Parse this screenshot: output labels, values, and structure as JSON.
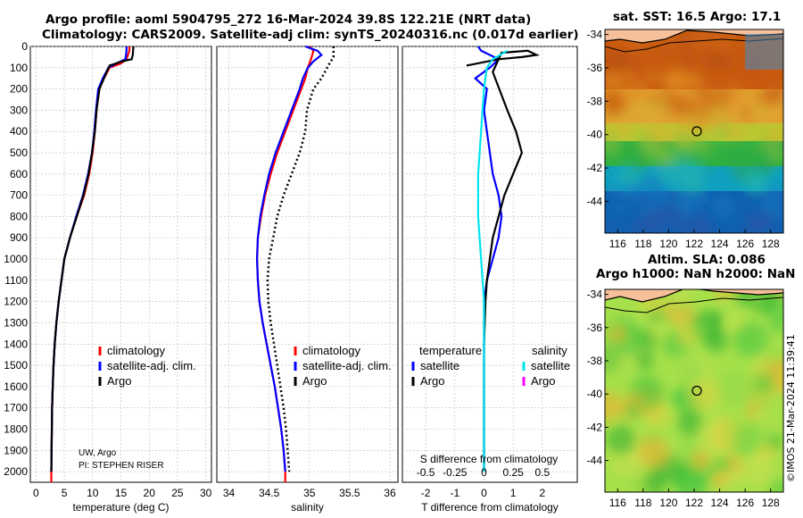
{
  "header": {
    "title_line1": "Argo profile: aoml 5904795_272 16-Mar-2024 39.8S 122.21E (NRT data)",
    "title_line2": "Climatology: CARS2009. Satellite-adj clim: synTS_20240316.nc (0.017d earlier)"
  },
  "footer_note": "©IMOS 21-Mar-2024 11:39:41",
  "credit": {
    "line1": "UW, Argo",
    "line2": "PI: STEPHEN RISER"
  },
  "colors": {
    "climatology": "#ff0000",
    "satellite": "#0000ff",
    "argo": "#000000",
    "sat_salinity": "#00e5ee",
    "argo_salinity": "#ff00ff",
    "land": "#f5c09a"
  },
  "chart_data": [
    {
      "type": "line",
      "xlabel": "temperature (deg C)",
      "ylim": [
        2050,
        0
      ],
      "xlim": [
        -1,
        31
      ],
      "xticks": [
        "0",
        "5",
        "10",
        "15",
        "20",
        "25",
        "30"
      ],
      "yticks": [
        "0",
        "100",
        "200",
        "300",
        "400",
        "500",
        "600",
        "700",
        "800",
        "900",
        "1000",
        "1100",
        "1200",
        "1300",
        "1400",
        "1500",
        "1600",
        "1700",
        "1800",
        "1900",
        "2000"
      ],
      "legend": [
        "climatology",
        "satellite-adj. clim.",
        "Argo"
      ],
      "series": [
        {
          "name": "climatology",
          "color": "#ff0000",
          "points": [
            [
              16.5,
              0
            ],
            [
              16.5,
              20
            ],
            [
              16,
              60
            ],
            [
              15,
              80
            ],
            [
              13,
              100
            ],
            [
              12,
              150
            ],
            [
              11.2,
              200
            ],
            [
              10.7,
              300
            ],
            [
              10.4,
              400
            ],
            [
              10,
              500
            ],
            [
              9.4,
              600
            ],
            [
              8.5,
              700
            ],
            [
              7.2,
              800
            ],
            [
              6,
              900
            ],
            [
              5,
              1000
            ],
            [
              4.5,
              1100
            ],
            [
              4,
              1200
            ],
            [
              3.6,
              1300
            ],
            [
              3.3,
              1400
            ],
            [
              3.1,
              1500
            ],
            [
              2.95,
              1600
            ],
            [
              2.85,
              1700
            ],
            [
              2.8,
              1800
            ],
            [
              2.75,
              1900
            ],
            [
              2.7,
              2000
            ],
            [
              2.7,
              2050
            ]
          ]
        },
        {
          "name": "satellite-adj. clim.",
          "color": "#0000ff",
          "points": [
            [
              16,
              0
            ],
            [
              16,
              20
            ],
            [
              15.8,
              60
            ],
            [
              14.2,
              80
            ],
            [
              12.8,
              100
            ],
            [
              11.8,
              150
            ],
            [
              11,
              200
            ],
            [
              10.6,
              300
            ],
            [
              10.3,
              400
            ],
            [
              9.9,
              500
            ],
            [
              9.2,
              600
            ],
            [
              8.3,
              700
            ],
            [
              7.1,
              800
            ],
            [
              6,
              900
            ],
            [
              5,
              1000
            ],
            [
              4.5,
              1100
            ],
            [
              4,
              1200
            ],
            [
              3.6,
              1300
            ],
            [
              3.3,
              1400
            ],
            [
              3.1,
              1500
            ],
            [
              2.95,
              1600
            ],
            [
              2.85,
              1700
            ],
            [
              2.8,
              1800
            ],
            [
              2.75,
              1900
            ],
            [
              2.7,
              2000
            ]
          ]
        },
        {
          "name": "Argo",
          "color": "#000000",
          "points": [
            [
              17.2,
              0
            ],
            [
              17.1,
              40
            ],
            [
              16.9,
              60
            ],
            [
              15.2,
              70
            ],
            [
              13,
              90
            ],
            [
              12,
              150
            ],
            [
              11.2,
              200
            ],
            [
              10.7,
              300
            ],
            [
              10.4,
              400
            ],
            [
              9.9,
              500
            ],
            [
              9.3,
              600
            ],
            [
              8.4,
              700
            ],
            [
              7.2,
              800
            ],
            [
              6,
              900
            ],
            [
              5,
              1000
            ],
            [
              4.5,
              1100
            ],
            [
              4,
              1200
            ],
            [
              3.6,
              1300
            ],
            [
              3.3,
              1400
            ],
            [
              3.1,
              1500
            ],
            [
              2.95,
              1600
            ],
            [
              2.85,
              1700
            ],
            [
              2.8,
              1800
            ],
            [
              2.75,
              1900
            ],
            [
              2.7,
              2000
            ]
          ]
        }
      ]
    },
    {
      "type": "line",
      "xlabel": "salinity",
      "ylim": [
        2050,
        0
      ],
      "xlim": [
        33.85,
        36.1
      ],
      "xticks": [
        "34",
        "34.5",
        "35",
        "35.5",
        "36"
      ],
      "legend": [
        "climatology",
        "satellite-adj. clim.",
        "Argo"
      ],
      "series": [
        {
          "name": "climatology",
          "color": "#ff0000",
          "points": [
            [
              35,
              0
            ],
            [
              35.05,
              20
            ],
            [
              35.02,
              60
            ],
            [
              34.98,
              100
            ],
            [
              34.95,
              150
            ],
            [
              34.9,
              200
            ],
            [
              34.8,
              300
            ],
            [
              34.7,
              400
            ],
            [
              34.6,
              500
            ],
            [
              34.52,
              600
            ],
            [
              34.45,
              700
            ],
            [
              34.4,
              800
            ],
            [
              34.36,
              900
            ],
            [
              34.35,
              1000
            ],
            [
              34.36,
              1100
            ],
            [
              34.38,
              1200
            ],
            [
              34.42,
              1300
            ],
            [
              34.47,
              1400
            ],
            [
              34.52,
              1500
            ],
            [
              34.57,
              1600
            ],
            [
              34.61,
              1700
            ],
            [
              34.65,
              1800
            ],
            [
              34.68,
              1900
            ],
            [
              34.7,
              2000
            ],
            [
              34.7,
              2050
            ]
          ]
        },
        {
          "name": "satellite-adj. clim.",
          "color": "#0000ff",
          "points": [
            [
              34.95,
              0
            ],
            [
              35.1,
              20
            ],
            [
              35.15,
              40
            ],
            [
              35.05,
              70
            ],
            [
              34.98,
              100
            ],
            [
              34.92,
              150
            ],
            [
              34.88,
              200
            ],
            [
              34.78,
              300
            ],
            [
              34.68,
              400
            ],
            [
              34.58,
              500
            ],
            [
              34.5,
              600
            ],
            [
              34.44,
              700
            ],
            [
              34.39,
              800
            ],
            [
              34.36,
              900
            ],
            [
              34.35,
              1000
            ],
            [
              34.36,
              1100
            ],
            [
              34.38,
              1200
            ],
            [
              34.42,
              1300
            ],
            [
              34.47,
              1400
            ],
            [
              34.52,
              1500
            ],
            [
              34.57,
              1600
            ],
            [
              34.61,
              1700
            ],
            [
              34.65,
              1800
            ],
            [
              34.68,
              1900
            ],
            [
              34.7,
              2000
            ]
          ]
        },
        {
          "name": "Argo",
          "color": "#000000",
          "points": [
            [
              35.3,
              0
            ],
            [
              35.3,
              50
            ],
            [
              35.25,
              80
            ],
            [
              35.15,
              150
            ],
            [
              35.05,
              200
            ],
            [
              34.97,
              300
            ],
            [
              34.95,
              400
            ],
            [
              34.88,
              500
            ],
            [
              34.78,
              600
            ],
            [
              34.68,
              700
            ],
            [
              34.6,
              800
            ],
            [
              34.55,
              900
            ],
            [
              34.5,
              1000
            ],
            [
              34.48,
              1100
            ],
            [
              34.49,
              1200
            ],
            [
              34.52,
              1300
            ],
            [
              34.56,
              1400
            ],
            [
              34.6,
              1500
            ],
            [
              34.64,
              1600
            ],
            [
              34.68,
              1700
            ],
            [
              34.71,
              1800
            ],
            [
              34.73,
              1900
            ],
            [
              34.75,
              2000
            ]
          ]
        }
      ]
    },
    {
      "type": "line",
      "xlabel": "T difference from climatology",
      "xlabel_top": "S difference from climatology",
      "xticks": [
        "-2",
        "-1",
        "0",
        "1",
        "2"
      ],
      "xticks_salinity": [
        "-0.5",
        "-0.25",
        "0",
        "0.25",
        "0.5"
      ],
      "xlim": [
        -2.8,
        3.2
      ],
      "ylim": [
        2050,
        0
      ],
      "legend_temperature": {
        "heading": "temperature",
        "items": [
          "satellite",
          "Argo"
        ]
      },
      "legend_salinity": {
        "heading": "salinity",
        "items": [
          "satellite",
          "Argo"
        ]
      },
      "series": [
        {
          "name": "satellite",
          "color": "#0000ff",
          "points": [
            [
              -0.2,
              0
            ],
            [
              -0.1,
              20
            ],
            [
              0.5,
              60
            ],
            [
              0.2,
              100
            ],
            [
              -0.3,
              150
            ],
            [
              0.1,
              200
            ],
            [
              0,
              300
            ],
            [
              0.1,
              400
            ],
            [
              0.2,
              500
            ],
            [
              0.3,
              600
            ],
            [
              0.5,
              700
            ],
            [
              0.6,
              800
            ],
            [
              0.5,
              900
            ],
            [
              0.3,
              1000
            ],
            [
              0.1,
              1100
            ],
            [
              0,
              1200
            ],
            [
              0,
              1300
            ],
            [
              0,
              1400
            ],
            [
              0,
              1500
            ],
            [
              0,
              1600
            ],
            [
              0,
              1700
            ],
            [
              0,
              1800
            ],
            [
              0,
              1900
            ],
            [
              0,
              2000
            ]
          ]
        },
        {
          "name": "Argo",
          "color": "#000000",
          "points": [
            [
              -0.6,
              90
            ],
            [
              0.5,
              60
            ],
            [
              1.3,
              50
            ],
            [
              1.8,
              40
            ],
            [
              1.5,
              20
            ],
            [
              0.6,
              30
            ],
            [
              0.3,
              120
            ],
            [
              0.8,
              300
            ],
            [
              1.1,
              400
            ],
            [
              1.3,
              500
            ],
            [
              1,
              600
            ],
            [
              0.7,
              700
            ],
            [
              0.5,
              800
            ],
            [
              0.3,
              900
            ],
            [
              0.2,
              1000
            ],
            [
              0.1,
              1100
            ],
            [
              0.05,
              1200
            ],
            [
              0,
              1400
            ],
            [
              0,
              2000
            ]
          ]
        },
        {
          "name": "satellite",
          "color": "#00e5ee",
          "points": [
            [
              0.8,
              20
            ],
            [
              0.3,
              60
            ],
            [
              0.1,
              100
            ],
            [
              0,
              200
            ],
            [
              -0.1,
              400
            ],
            [
              -0.2,
              600
            ],
            [
              -0.2,
              800
            ],
            [
              -0.1,
              1000
            ],
            [
              0,
              1200
            ],
            [
              0,
              1400
            ],
            [
              0,
              1600
            ],
            [
              0,
              2000
            ]
          ]
        }
      ]
    }
  ],
  "maps": {
    "top": {
      "title": "sat. SST: 16.5 Argo: 17.1",
      "xticks": [
        "116",
        "118",
        "120",
        "122",
        "124",
        "126",
        "128"
      ],
      "yticks": [
        "-34",
        "-36",
        "-38",
        "-40",
        "-42",
        "-44"
      ],
      "float_lon": 122.21,
      "float_lat": -39.8
    },
    "bottom": {
      "title_line1": "Altim. SLA: 0.086",
      "title_line2": "Argo h1000: NaN h2000: NaN",
      "xticks": [
        "116",
        "118",
        "120",
        "122",
        "124",
        "126",
        "128"
      ],
      "yticks": [
        "-34",
        "-36",
        "-38",
        "-40",
        "-42",
        "-44"
      ],
      "float_lon": 122.21,
      "float_lat": -39.8
    }
  }
}
